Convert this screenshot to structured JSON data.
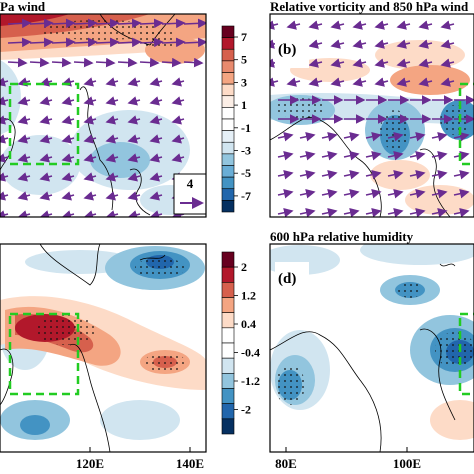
{
  "panels": {
    "a": {
      "title_fragment": "Pa wind",
      "ref_vector": "4"
    },
    "b": {
      "label": "(b)",
      "title": "Relative vorticity and 850 hPa wind"
    },
    "c": {},
    "d": {
      "label": "(d)",
      "title": "600 hPa relative humidity"
    }
  },
  "colorbar_top": {
    "labels": [
      "7",
      "5",
      "3",
      "1",
      "-1",
      "-3",
      "-5",
      "-7"
    ]
  },
  "colorbar_bottom": {
    "labels": [
      "2",
      "1.2",
      "0.4",
      "-0.4",
      "-1.2",
      "-2"
    ]
  },
  "x_axis": {
    "left_ticks": [
      "120E",
      "140E"
    ],
    "right_ticks": [
      "80E",
      "100E"
    ]
  },
  "colors": {
    "wind_vector": "#6a2c91",
    "box": "#22cc22",
    "red_strong": "#b2182b",
    "red": "#d6604d",
    "orange": "#f4a582",
    "light_orange": "#fddbc7",
    "light_blue": "#d1e5f0",
    "blue": "#92c5de",
    "mid_blue": "#4393c3",
    "dark_blue": "#2166ac"
  }
}
